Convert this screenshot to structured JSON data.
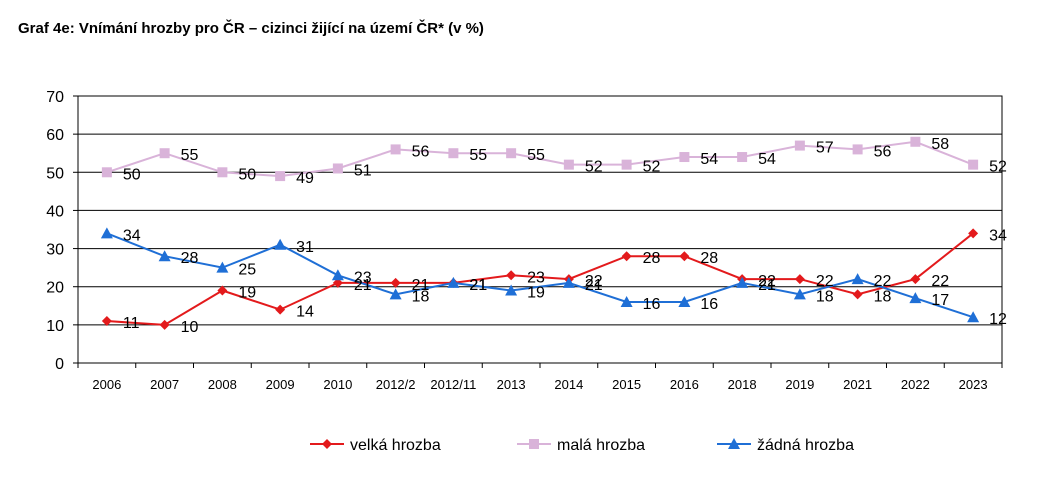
{
  "chart_data": {
    "type": "line",
    "title": "Graf 4e: Vnímání hrozby pro ČR – cizinci žijící na území ČR* (v %)",
    "categories": [
      "2006",
      "2007",
      "2008",
      "2009",
      "2010",
      "2012/2",
      "2012/11",
      "2013",
      "2014",
      "2015",
      "2016",
      "2018",
      "2019",
      "2021",
      "2022",
      "2023"
    ],
    "ylim": [
      0,
      70
    ],
    "yticks": [
      0,
      10,
      20,
      30,
      40,
      50,
      60,
      70
    ],
    "grid": true,
    "legend_position": "bottom",
    "series": [
      {
        "name": "velká hrozba",
        "color": "#e31a1c",
        "marker": "diamond",
        "values": [
          11,
          10,
          19,
          14,
          21,
          21,
          21,
          23,
          22,
          28,
          28,
          22,
          22,
          18,
          22,
          34
        ]
      },
      {
        "name": "malá hrozba",
        "color": "#d9b3d9",
        "marker": "square",
        "values": [
          50,
          55,
          50,
          49,
          51,
          56,
          55,
          55,
          52,
          52,
          54,
          54,
          57,
          56,
          58,
          52
        ]
      },
      {
        "name": "žádná hrozba",
        "color": "#1f6fd6",
        "marker": "triangle",
        "values": [
          34,
          28,
          25,
          31,
          23,
          18,
          21,
          19,
          21,
          16,
          16,
          21,
          18,
          22,
          17,
          12
        ]
      }
    ]
  }
}
